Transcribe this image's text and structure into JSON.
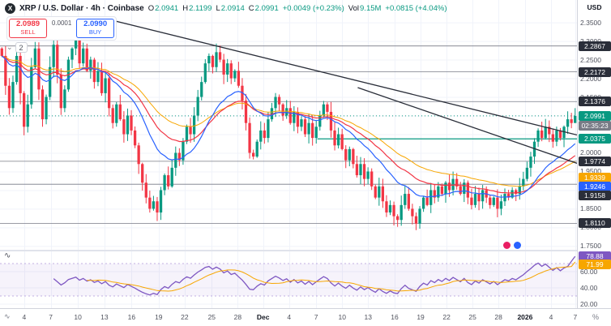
{
  "legend": {
    "logo": "X",
    "symbol": "XRP / U.S. Dollar · 4h · Coinbase",
    "o": {
      "k": "O",
      "v": "2.0941"
    },
    "h": {
      "k": "H",
      "v": "2.1199"
    },
    "l": {
      "k": "L",
      "v": "2.0914"
    },
    "c": {
      "k": "C",
      "v": "2.0991"
    },
    "change": "+0.0049 (+0.23%)",
    "vol_k": "Vol",
    "vol_v": "9.15M",
    "change2": "+0.0815 (+4.04%)"
  },
  "trade": {
    "sell_price": "2.0989",
    "sell_label": "SELL",
    "spread": "0.0001",
    "buy_price": "2.0990",
    "buy_label": "BUY"
  },
  "collapsed_count": "2",
  "price_axis": {
    "currency": "USD",
    "percent_toggle": "%",
    "ticks": [
      {
        "label": "2.3500",
        "price": 2.35
      },
      {
        "label": "2.3000",
        "price": 2.3
      },
      {
        "label": "2.2500",
        "price": 2.25
      },
      {
        "label": "2.2000",
        "price": 2.2
      },
      {
        "label": "2.1500",
        "price": 2.15
      },
      {
        "label": "2.0000",
        "price": 2.0
      },
      {
        "label": "1.9500",
        "price": 1.95
      },
      {
        "label": "1.8500",
        "price": 1.85
      },
      {
        "label": "1.8000",
        "price": 1.8
      },
      {
        "label": "1.7500",
        "price": 1.75
      }
    ],
    "badges": [
      {
        "label": "2.2867",
        "price": 2.2867,
        "bg": "#2a2e39",
        "fg": "#ffffff",
        "name": "level-badge"
      },
      {
        "label": "2.2172",
        "price": 2.2172,
        "bg": "#2a2e39",
        "fg": "#ffffff",
        "name": "level-badge"
      },
      {
        "label": "2.1376",
        "price": 2.1376,
        "bg": "#2a2e39",
        "fg": "#ffffff",
        "name": "level-badge"
      },
      {
        "label": "2.0991",
        "price": 2.0991,
        "bg": "#089981",
        "fg": "#ffffff",
        "name": "last-price-badge"
      },
      {
        "label": "02:35:23",
        "price": 2.073,
        "bg": "#787b86",
        "fg": "#ffffff",
        "name": "countdown-badge"
      },
      {
        "label": "2.0375",
        "price": 2.0375,
        "bg": "#089981",
        "fg": "#ffffff",
        "name": "indicator-badge-teal"
      },
      {
        "label": "1.9774",
        "price": 1.9774,
        "bg": "#2a2e39",
        "fg": "#ffffff",
        "name": "level-badge"
      },
      {
        "label": "1.9339",
        "price": 1.9339,
        "bg": "#f7a600",
        "fg": "#ffffff",
        "name": "indicator-badge-yellow"
      },
      {
        "label": "1.9246",
        "price": 1.9246,
        "bg": "#2962ff",
        "fg": "#ffffff",
        "name": "indicator-badge-blue"
      },
      {
        "label": "1.9158",
        "price": 1.9158,
        "bg": "#2a2e39",
        "fg": "#ffffff",
        "name": "level-badge"
      },
      {
        "label": "1.8110",
        "price": 1.811,
        "bg": "#2a2e39",
        "fg": "#ffffff",
        "name": "level-badge"
      }
    ]
  },
  "time_axis": {
    "labels": [
      {
        "t": "4",
        "x": 0.042
      },
      {
        "t": "7",
        "x": 0.088
      },
      {
        "t": "10",
        "x": 0.135
      },
      {
        "t": "13",
        "x": 0.181
      },
      {
        "t": "16",
        "x": 0.228
      },
      {
        "t": "19",
        "x": 0.275
      },
      {
        "t": "22",
        "x": 0.32
      },
      {
        "t": "25",
        "x": 0.367
      },
      {
        "t": "28",
        "x": 0.412
      },
      {
        "t": "Dec",
        "x": 0.456,
        "bold": true
      },
      {
        "t": "4",
        "x": 0.501
      },
      {
        "t": "7",
        "x": 0.548
      },
      {
        "t": "10",
        "x": 0.593
      },
      {
        "t": "13",
        "x": 0.638
      },
      {
        "t": "16",
        "x": 0.684
      },
      {
        "t": "19",
        "x": 0.729
      },
      {
        "t": "22",
        "x": 0.774
      },
      {
        "t": "25",
        "x": 0.819
      },
      {
        "t": "28",
        "x": 0.864
      },
      {
        "t": "2026",
        "x": 0.91,
        "bold": true
      },
      {
        "t": "4",
        "x": 0.955
      },
      {
        "t": "7",
        "x": 0.997
      }
    ]
  },
  "markers": [
    {
      "name": "emoji-sticker-pink",
      "color": "#e91e63"
    },
    {
      "name": "emoji-sticker-blue",
      "color": "#2962ff"
    }
  ],
  "chart_data": {
    "type": "candlestick",
    "symbol": "XRP/USD",
    "timeframe": "4h",
    "exchange": "Coinbase",
    "price_range": [
      1.74,
      2.41
    ],
    "grid_prices": [
      2.35,
      2.3,
      2.25,
      2.2,
      2.15,
      2.1,
      2.05,
      2.0,
      1.95,
      1.9,
      1.85,
      1.8,
      1.75
    ],
    "last": {
      "o": 2.0941,
      "h": 2.1199,
      "l": 2.0914,
      "c": 2.0991
    },
    "closes": [
      2.26,
      2.18,
      2.12,
      2.19,
      2.26,
      2.16,
      2.07,
      2.13,
      2.23,
      2.28,
      2.17,
      2.09,
      2.15,
      2.23,
      2.29,
      2.21,
      2.12,
      2.17,
      2.25,
      2.28,
      2.31,
      2.24,
      2.28,
      2.22,
      2.25,
      2.19,
      2.22,
      2.16,
      2.2,
      2.12,
      2.08,
      2.13,
      2.09,
      2.05,
      2.1,
      2.06,
      2.02,
      1.97,
      1.92,
      1.88,
      1.85,
      1.87,
      1.84,
      1.9,
      1.94,
      1.91,
      1.96,
      2.0,
      1.98,
      2.03,
      2.07,
      2.05,
      2.1,
      2.15,
      2.19,
      2.24,
      2.26,
      2.23,
      2.27,
      2.25,
      2.21,
      2.24,
      2.2,
      2.22,
      2.18,
      2.14,
      2.08,
      2.0,
      1.99,
      2.03,
      2.06,
      2.04,
      2.09,
      2.12,
      2.15,
      2.13,
      2.1,
      2.12,
      2.08,
      2.11,
      2.07,
      2.09,
      2.05,
      2.08,
      2.04,
      2.07,
      2.1,
      2.13,
      2.11,
      2.06,
      2.02,
      2.05,
      2.01,
      1.98,
      2.01,
      1.97,
      1.94,
      1.97,
      1.93,
      1.95,
      1.91,
      1.88,
      1.91,
      1.87,
      1.84,
      1.86,
      1.83,
      1.82,
      1.86,
      1.89,
      1.85,
      1.83,
      1.81,
      1.85,
      1.88,
      1.86,
      1.9,
      1.88,
      1.91,
      1.89,
      1.92,
      1.9,
      1.93,
      1.91,
      1.89,
      1.92,
      1.88,
      1.86,
      1.89,
      1.87,
      1.9,
      1.88,
      1.86,
      1.88,
      1.85,
      1.87,
      1.89,
      1.88,
      1.9,
      1.89,
      1.91,
      1.93,
      1.96,
      1.99,
      2.03,
      2.06,
      2.04,
      2.07,
      2.05,
      2.03,
      2.06,
      2.04,
      2.07,
      2.09,
      2.08,
      2.0991
    ],
    "levels": [
      2.2867,
      2.2172,
      2.1376,
      1.9774,
      1.9158,
      1.811
    ],
    "teal_level": 2.0375,
    "trendlines": [
      {
        "x1": 0.17,
        "p1": 2.365,
        "x2": 1.0,
        "p2": 2.048
      },
      {
        "x1": 0.62,
        "p1": 2.175,
        "x2": 1.0,
        "p2": 1.972
      }
    ],
    "rsi": {
      "period": 14,
      "upper": 70,
      "lower": 30,
      "range": [
        15,
        85
      ],
      "last": 78.88,
      "ma_last": 71.99,
      "ticks": [
        {
          "label": "60.00",
          "v": 60
        },
        {
          "label": "40.00",
          "v": 40
        },
        {
          "label": "20.00",
          "v": 20
        }
      ],
      "badges": [
        {
          "label": "78.88",
          "v": 78.88,
          "bg": "#7e57c2",
          "fg": "#ffffff",
          "name": "rsi-value-badge"
        },
        {
          "label": "71.99",
          "v": 71.99,
          "bg": "#f7a600",
          "fg": "#ffffff",
          "name": "rsi-ma-badge"
        }
      ]
    },
    "colors": {
      "up": "#089981",
      "down": "#f23645",
      "ma_fast": "#2962ff",
      "ma_slow": "#f23645",
      "ma_yellow": "#f7a600",
      "rsi": "#7e57c2",
      "rsi_ma": "#f7a600",
      "trendline": "#2a2e39",
      "level": "#787b86"
    }
  }
}
